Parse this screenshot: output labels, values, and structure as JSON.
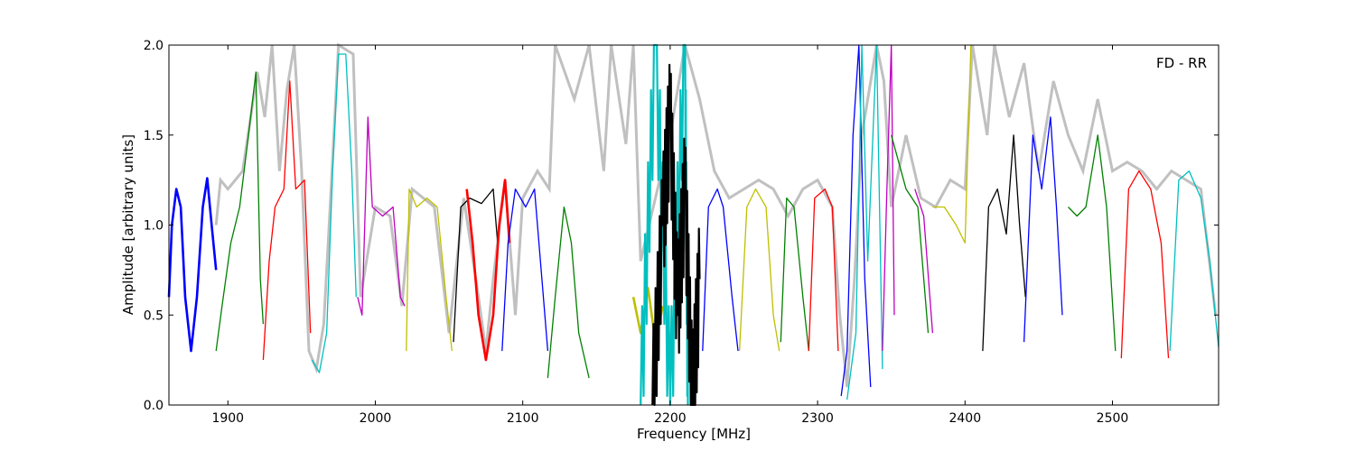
{
  "chart_data": {
    "type": "line",
    "title": "",
    "annotation": "FD - RR",
    "xlabel": "Frequency [MHz]",
    "ylabel": "Amplitude [arbitrary units]",
    "xlim": [
      1860,
      2572
    ],
    "ylim": [
      0,
      2
    ],
    "x_ticks": [
      1900,
      2000,
      2100,
      2200,
      2300,
      2400,
      2500
    ],
    "y_ticks": [
      0.0,
      0.5,
      1.0,
      1.5,
      2.0
    ],
    "x_tick_labels": [
      "1900",
      "2000",
      "2100",
      "2200",
      "2300",
      "2400",
      "2500"
    ],
    "y_tick_labels": [
      "0.0",
      "0.5",
      "1.0",
      "1.5",
      "2.0"
    ],
    "grid": false,
    "background_envelope": {
      "color": "#c0c0c0",
      "points": [
        [
          1892,
          1.0
        ],
        [
          1895,
          1.25
        ],
        [
          1900,
          1.2
        ],
        [
          1910,
          1.3
        ],
        [
          1920,
          1.85
        ],
        [
          1925,
          1.6
        ],
        [
          1930,
          2.0
        ],
        [
          1935,
          1.3
        ],
        [
          1940,
          1.75
        ],
        [
          1945,
          2.0
        ],
        [
          1950,
          1.3
        ],
        [
          1955,
          0.3
        ],
        [
          1960,
          0.2
        ],
        [
          1965,
          0.45
        ],
        [
          1970,
          1.2
        ],
        [
          1975,
          2.0
        ],
        [
          1985,
          1.95
        ],
        [
          1990,
          0.6
        ],
        [
          2000,
          1.1
        ],
        [
          2010,
          1.05
        ],
        [
          2018,
          0.55
        ],
        [
          2025,
          1.2
        ],
        [
          2040,
          1.1
        ],
        [
          2050,
          0.4
        ],
        [
          2060,
          1.15
        ],
        [
          2070,
          0.6
        ],
        [
          2075,
          0.3
        ],
        [
          2080,
          0.7
        ],
        [
          2088,
          1.25
        ],
        [
          2095,
          0.5
        ],
        [
          2100,
          1.15
        ],
        [
          2110,
          1.3
        ],
        [
          2118,
          1.2
        ],
        [
          2122,
          2.0
        ],
        [
          2135,
          1.7
        ],
        [
          2145,
          2.0
        ],
        [
          2155,
          1.3
        ],
        [
          2160,
          2.0
        ],
        [
          2170,
          1.45
        ],
        [
          2175,
          2.0
        ],
        [
          2180,
          0.8
        ],
        [
          2200,
          1.5
        ],
        [
          2210,
          2.0
        ],
        [
          2220,
          1.7
        ],
        [
          2230,
          1.3
        ],
        [
          2240,
          1.15
        ],
        [
          2250,
          1.2
        ],
        [
          2260,
          1.25
        ],
        [
          2270,
          1.2
        ],
        [
          2280,
          1.05
        ],
        [
          2290,
          1.2
        ],
        [
          2300,
          1.25
        ],
        [
          2310,
          1.1
        ],
        [
          2315,
          0.5
        ],
        [
          2320,
          0.1
        ],
        [
          2325,
          0.7
        ],
        [
          2330,
          1.5
        ],
        [
          2340,
          2.0
        ],
        [
          2345,
          1.8
        ],
        [
          2350,
          1.1
        ],
        [
          2360,
          1.5
        ],
        [
          2370,
          1.15
        ],
        [
          2380,
          1.1
        ],
        [
          2390,
          1.25
        ],
        [
          2400,
          1.2
        ],
        [
          2405,
          2.0
        ],
        [
          2415,
          1.5
        ],
        [
          2420,
          2.0
        ],
        [
          2430,
          1.6
        ],
        [
          2440,
          1.9
        ],
        [
          2450,
          1.3
        ],
        [
          2460,
          1.8
        ],
        [
          2470,
          1.5
        ],
        [
          2480,
          1.3
        ],
        [
          2490,
          1.7
        ],
        [
          2500,
          1.3
        ],
        [
          2510,
          1.35
        ],
        [
          2520,
          1.3
        ],
        [
          2530,
          1.2
        ],
        [
          2540,
          1.3
        ],
        [
          2550,
          1.25
        ],
        [
          2560,
          1.2
        ],
        [
          2570,
          0.5
        ]
      ]
    },
    "series": [
      {
        "color": "#0000ff",
        "style": "thick",
        "points": [
          [
            1860,
            0.6
          ],
          [
            1862,
            1.0
          ],
          [
            1865,
            1.2
          ],
          [
            1868,
            1.1
          ],
          [
            1871,
            0.6
          ],
          [
            1875,
            0.3
          ],
          [
            1879,
            0.6
          ],
          [
            1883,
            1.1
          ],
          [
            1886,
            1.26
          ],
          [
            1889,
            1.0
          ],
          [
            1892,
            0.75
          ]
        ]
      },
      {
        "color": "#008000",
        "points": [
          [
            1892,
            0.3
          ],
          [
            1896,
            0.55
          ],
          [
            1902,
            0.9
          ],
          [
            1908,
            1.1
          ],
          [
            1914,
            1.5
          ],
          [
            1919,
            1.85
          ],
          [
            1922,
            0.7
          ],
          [
            1924,
            0.45
          ]
        ]
      },
      {
        "color": "#ff0000",
        "points": [
          [
            1924,
            0.25
          ],
          [
            1928,
            0.8
          ],
          [
            1932,
            1.1
          ],
          [
            1938,
            1.2
          ],
          [
            1942,
            1.8
          ],
          [
            1946,
            1.2
          ],
          [
            1952,
            1.25
          ],
          [
            1956,
            0.4
          ]
        ]
      },
      {
        "color": "#00bfbf",
        "points": [
          [
            1957,
            0.25
          ],
          [
            1962,
            0.18
          ],
          [
            1967,
            0.4
          ],
          [
            1971,
            1.3
          ],
          [
            1975,
            1.95
          ],
          [
            1980,
            1.95
          ],
          [
            1984,
            1.3
          ],
          [
            1987,
            0.6
          ]
        ]
      },
      {
        "color": "#bf00bf",
        "points": [
          [
            1988,
            0.6
          ],
          [
            1991,
            0.5
          ],
          [
            1995,
            1.6
          ],
          [
            1998,
            1.1
          ],
          [
            2005,
            1.05
          ],
          [
            2012,
            1.1
          ],
          [
            2017,
            0.6
          ],
          [
            2020,
            0.55
          ]
        ]
      },
      {
        "color": "#bfbf00",
        "points": [
          [
            2021,
            0.3
          ],
          [
            2023,
            1.2
          ],
          [
            2028,
            1.1
          ],
          [
            2035,
            1.15
          ],
          [
            2042,
            1.1
          ],
          [
            2048,
            0.6
          ],
          [
            2052,
            0.3
          ]
        ]
      },
      {
        "color": "#000000",
        "points": [
          [
            2053,
            0.35
          ],
          [
            2058,
            1.1
          ],
          [
            2064,
            1.15
          ],
          [
            2072,
            1.12
          ],
          [
            2080,
            1.2
          ],
          [
            2083,
            0.9
          ]
        ]
      },
      {
        "color": "#ff0000",
        "style": "thick",
        "points": [
          [
            2062,
            1.2
          ],
          [
            2066,
            0.9
          ],
          [
            2070,
            0.5
          ],
          [
            2075,
            0.25
          ],
          [
            2080,
            0.5
          ],
          [
            2084,
            1.0
          ],
          [
            2088,
            1.25
          ],
          [
            2091,
            0.9
          ]
        ]
      },
      {
        "color": "#0000ff",
        "points": [
          [
            2086,
            0.3
          ],
          [
            2090,
            0.9
          ],
          [
            2095,
            1.2
          ],
          [
            2102,
            1.1
          ],
          [
            2108,
            1.2
          ],
          [
            2113,
            0.7
          ],
          [
            2117,
            0.3
          ]
        ]
      },
      {
        "color": "#008000",
        "points": [
          [
            2117,
            0.15
          ],
          [
            2122,
            0.6
          ],
          [
            2128,
            1.1
          ],
          [
            2133,
            0.9
          ],
          [
            2138,
            0.4
          ],
          [
            2145,
            0.15
          ]
        ]
      },
      {
        "color": "#bfbf00",
        "style": "thick",
        "points": [
          [
            2175,
            0.6
          ],
          [
            2180,
            0.4
          ],
          [
            2185,
            0.65
          ],
          [
            2190,
            0.35
          ],
          [
            2195,
            0.55
          ]
        ]
      },
      {
        "color": "#00bfbf",
        "style": "noisy",
        "points": [
          [
            2180,
            0.0
          ],
          [
            2190,
            2.0
          ],
          [
            2200,
            0.0
          ],
          [
            2210,
            2.0
          ],
          [
            2212,
            0.0
          ]
        ]
      },
      {
        "color": "#000000",
        "style": "noisy",
        "points": [
          [
            2188,
            0.0
          ],
          [
            2195,
            1.0
          ],
          [
            2200,
            1.6
          ],
          [
            2205,
            0.5
          ],
          [
            2210,
            1.2
          ],
          [
            2215,
            0.0
          ],
          [
            2220,
            0.7
          ]
        ]
      },
      {
        "color": "#0000ff",
        "points": [
          [
            2222,
            0.3
          ],
          [
            2226,
            1.1
          ],
          [
            2232,
            1.2
          ],
          [
            2236,
            1.1
          ],
          [
            2242,
            0.6
          ],
          [
            2246,
            0.3
          ]
        ]
      },
      {
        "color": "#bfbf00",
        "points": [
          [
            2247,
            0.3
          ],
          [
            2252,
            1.1
          ],
          [
            2258,
            1.2
          ],
          [
            2265,
            1.1
          ],
          [
            2270,
            0.5
          ],
          [
            2274,
            0.3
          ]
        ]
      },
      {
        "color": "#008000",
        "points": [
          [
            2275,
            0.35
          ],
          [
            2279,
            1.15
          ],
          [
            2284,
            1.1
          ],
          [
            2290,
            0.6
          ],
          [
            2294,
            0.3
          ]
        ]
      },
      {
        "color": "#ff0000",
        "points": [
          [
            2294,
            0.3
          ],
          [
            2298,
            1.15
          ],
          [
            2305,
            1.2
          ],
          [
            2310,
            1.1
          ],
          [
            2314,
            0.3
          ]
        ]
      },
      {
        "color": "#0000ff",
        "points": [
          [
            2316,
            0.05
          ],
          [
            2320,
            0.3
          ],
          [
            2324,
            1.5
          ],
          [
            2328,
            2.0
          ],
          [
            2332,
            0.7
          ],
          [
            2336,
            0.1
          ]
        ]
      },
      {
        "color": "#00bfbf",
        "points": [
          [
            2320,
            0.03
          ],
          [
            2326,
            0.4
          ],
          [
            2330,
            2.0
          ],
          [
            2334,
            0.8
          ],
          [
            2340,
            2.0
          ],
          [
            2344,
            0.2
          ]
        ]
      },
      {
        "color": "#bf00bf",
        "points": [
          [
            2344,
            0.3
          ],
          [
            2347,
            1.2
          ],
          [
            2350,
            2.0
          ],
          [
            2352,
            0.5
          ]
        ]
      },
      {
        "color": "#008000",
        "points": [
          [
            2350,
            1.5
          ],
          [
            2360,
            1.2
          ],
          [
            2368,
            1.1
          ],
          [
            2375,
            0.4
          ]
        ]
      },
      {
        "color": "#bf00bf",
        "points": [
          [
            2366,
            1.2
          ],
          [
            2372,
            1.05
          ],
          [
            2378,
            0.4
          ]
        ]
      },
      {
        "color": "#bfbf00",
        "points": [
          [
            2378,
            1.1
          ],
          [
            2386,
            1.1
          ],
          [
            2394,
            1.0
          ],
          [
            2400,
            0.9
          ],
          [
            2404,
            2.0
          ]
        ]
      },
      {
        "color": "#000000",
        "points": [
          [
            2412,
            0.3
          ],
          [
            2416,
            1.1
          ],
          [
            2422,
            1.2
          ],
          [
            2428,
            0.95
          ],
          [
            2433,
            1.5
          ],
          [
            2437,
            1.0
          ],
          [
            2441,
            0.6
          ]
        ]
      },
      {
        "color": "#0000ff",
        "points": [
          [
            2440,
            0.35
          ],
          [
            2446,
            1.5
          ],
          [
            2452,
            1.2
          ],
          [
            2458,
            1.6
          ],
          [
            2462,
            1.1
          ],
          [
            2466,
            0.5
          ]
        ]
      },
      {
        "color": "#008000",
        "points": [
          [
            2470,
            1.1
          ],
          [
            2476,
            1.05
          ],
          [
            2482,
            1.1
          ],
          [
            2490,
            1.5
          ],
          [
            2496,
            1.1
          ],
          [
            2502,
            0.3
          ]
        ]
      },
      {
        "color": "#ff0000",
        "points": [
          [
            2506,
            0.26
          ],
          [
            2511,
            1.2
          ],
          [
            2518,
            1.3
          ],
          [
            2526,
            1.2
          ],
          [
            2533,
            0.9
          ],
          [
            2538,
            0.26
          ]
        ]
      },
      {
        "color": "#00bfbf",
        "points": [
          [
            2539,
            0.3
          ],
          [
            2545,
            1.25
          ],
          [
            2552,
            1.3
          ],
          [
            2560,
            1.15
          ],
          [
            2566,
            0.8
          ],
          [
            2572,
            0.32
          ]
        ]
      }
    ]
  }
}
